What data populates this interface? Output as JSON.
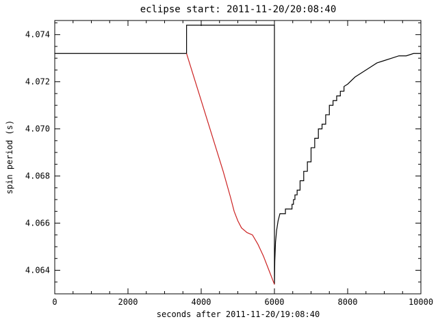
{
  "chart_data": {
    "type": "line",
    "title": "eclipse start: 2011-11-20/20:08:40",
    "xlabel": "seconds after 2011-11-20/19:08:40",
    "ylabel": "spin period (s)",
    "xlim": [
      0,
      10000
    ],
    "ylim": [
      4.063,
      4.0746
    ],
    "xticks": [
      0,
      2000,
      4000,
      6000,
      8000,
      10000
    ],
    "xtick_labels": [
      "0",
      "2000",
      "4000",
      "6000",
      "8000",
      "10000"
    ],
    "yticks": [
      4.064,
      4.066,
      4.068,
      4.07,
      4.072,
      4.074
    ],
    "ytick_labels": [
      "4.064",
      "4.066",
      "4.068",
      "4.070",
      "4.072",
      "4.074"
    ],
    "x_minor_step": 500,
    "y_minor_step": 0.0005,
    "grid": false,
    "legend": "none",
    "background": "#ffffff",
    "axis_color": "#000000",
    "series": [
      {
        "name": "spin-period-measured-black",
        "color": "#000000",
        "x": [
          0,
          3600,
          3600,
          6000,
          6000,
          6010,
          6030,
          6060,
          6100,
          6150,
          6200,
          6300,
          6400,
          6480,
          6520,
          6560,
          6620,
          6700,
          6800,
          6900,
          7000,
          7100,
          7200,
          7300,
          7400,
          7500,
          7600,
          7700,
          7800,
          7900,
          8000,
          8200,
          8400,
          8600,
          8800,
          9000,
          9200,
          9400,
          9600,
          9800,
          10000
        ],
        "y": [
          4.0732,
          4.0732,
          4.0744,
          4.0744,
          4.0634,
          4.0644,
          4.0652,
          4.0657,
          4.0661,
          4.0663,
          4.0665,
          4.0666,
          4.0666,
          4.0667,
          4.0669,
          4.0671,
          4.0674,
          4.0677,
          4.0682,
          4.0687,
          4.0692,
          4.0696,
          4.07,
          4.0703,
          4.0706,
          4.0709,
          4.0712,
          4.0714,
          4.0716,
          4.0718,
          4.0719,
          4.0722,
          4.0724,
          4.0726,
          4.0728,
          4.0729,
          4.073,
          4.0731,
          4.0731,
          4.0732,
          4.0732
        ],
        "step_quantize": {
          "from_x": 6150,
          "to_x": 7900,
          "dy": 0.0002
        }
      },
      {
        "name": "eclipse-spindown-red",
        "color": "#cc2222",
        "x": [
          3600,
          3800,
          4000,
          4200,
          4400,
          4600,
          4800,
          4900,
          5000,
          5100,
          5250,
          5400,
          5550,
          5700,
          5850,
          6000
        ],
        "y": [
          4.0732,
          4.0722,
          4.0712,
          4.0702,
          4.0692,
          4.0682,
          4.0671,
          4.0665,
          4.0661,
          4.0658,
          4.0656,
          4.0655,
          4.0651,
          4.0646,
          4.064,
          4.0634
        ]
      }
    ]
  }
}
